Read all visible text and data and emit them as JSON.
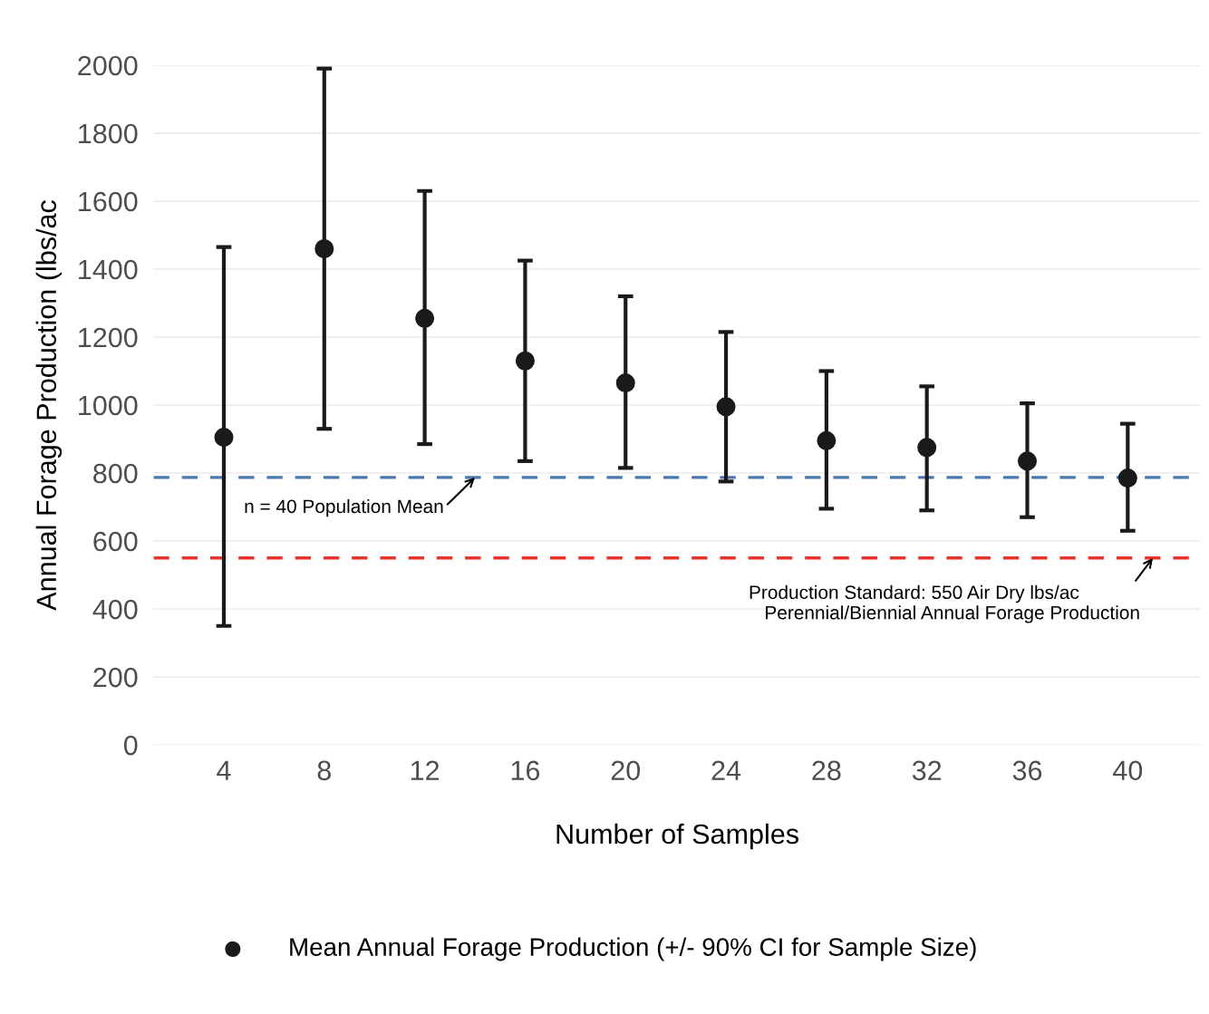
{
  "chart_data": {
    "type": "scatter",
    "xlabel": "Number of Samples",
    "ylabel": "Annual Forage Production (lbs/ac",
    "x": [
      4,
      8,
      12,
      16,
      20,
      24,
      28,
      32,
      36,
      40
    ],
    "series": [
      {
        "name": "Mean Annual Forage Production (+/- 90% CI for Sample Size)",
        "color": "#1a1a1a",
        "values": [
          905,
          1460,
          1255,
          1130,
          1065,
          995,
          895,
          875,
          835,
          785
        ],
        "errors": [
          [
            350,
            1465
          ],
          [
            930,
            1990
          ],
          [
            885,
            1630
          ],
          [
            835,
            1425
          ],
          [
            815,
            1320
          ],
          [
            775,
            1215
          ],
          [
            695,
            1100
          ],
          [
            690,
            1055
          ],
          [
            670,
            1005
          ],
          [
            630,
            945
          ]
        ]
      }
    ],
    "xlim": [
      1.2,
      42.9
    ],
    "xticks": [
      4,
      8,
      12,
      16,
      20,
      24,
      28,
      32,
      36,
      40
    ],
    "ylim": [
      0,
      2000
    ],
    "yticks": [
      0,
      200,
      400,
      600,
      800,
      1000,
      1200,
      1400,
      1600,
      1800,
      2000
    ],
    "ref_lines": [
      {
        "axis": "y",
        "value": 787,
        "color": "#4a78b0",
        "line_style": "dashed"
      },
      {
        "axis": "y",
        "value": 550,
        "color": "#e8342c",
        "line_style": "dashed"
      }
    ],
    "annotations": [
      {
        "text": "n = 40 Population Mean",
        "x": 14,
        "y": 787
      },
      {
        "text": "Production Standard: 550 Air Dry lbs/ac\n   Perennial/Biennial Annual Forage Production",
        "x": 41,
        "y": 550
      }
    ],
    "grid": "y",
    "legend": "bottom",
    "marker": "circle"
  }
}
